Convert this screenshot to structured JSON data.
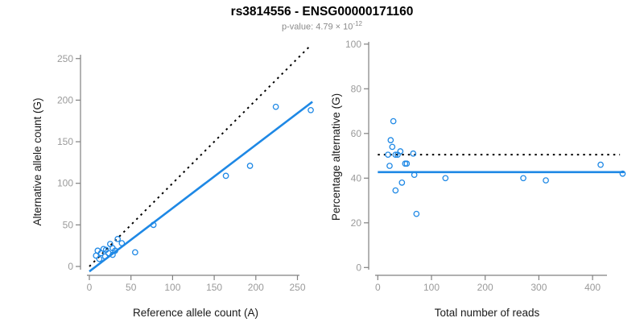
{
  "header": {
    "title": "rs3814556 - ENSG00000171160",
    "subtitle_prefix": "p-value: 4.79 × 10",
    "subtitle_exponent": "-12"
  },
  "colors": {
    "accent_blue": "#1E88E5",
    "line_black": "#000000",
    "axis_line": "#808080",
    "tick_label": "#9a9a9a",
    "axis_title": "#1a1a1a"
  },
  "chart_data": [
    {
      "name": "allele-count-scatter",
      "type": "scatter",
      "title": "",
      "xlabel": "Reference allele count (A)",
      "ylabel": "Alternative allele count (G)",
      "xticks": [
        0,
        50,
        100,
        150,
        200,
        250
      ],
      "yticks": [
        0,
        50,
        100,
        150,
        200,
        250
      ],
      "xlim": [
        0,
        268
      ],
      "ylim": [
        0,
        268
      ],
      "grid": false,
      "legend": false,
      "points": [
        [
          10,
          19
        ],
        [
          8,
          13
        ],
        [
          12,
          9
        ],
        [
          14,
          16
        ],
        [
          17,
          21
        ],
        [
          20,
          20
        ],
        [
          19,
          12
        ],
        [
          23,
          16
        ],
        [
          25,
          27
        ],
        [
          28,
          22
        ],
        [
          28,
          14
        ],
        [
          31,
          19
        ],
        [
          34,
          33
        ],
        [
          39,
          28
        ],
        [
          55,
          17
        ],
        [
          77,
          50
        ],
        [
          164,
          109
        ],
        [
          193,
          121
        ],
        [
          224,
          192
        ],
        [
          266,
          188
        ]
      ],
      "lines": [
        {
          "name": "identity-line",
          "style": "dotted",
          "color": "#000000",
          "from": [
            0,
            0
          ],
          "to": [
            266,
            266
          ]
        },
        {
          "name": "regression-line",
          "style": "solid",
          "color": "#1E88E5",
          "from": [
            0,
            -6
          ],
          "to": [
            268,
            198
          ]
        }
      ]
    },
    {
      "name": "percentage-scatter",
      "type": "scatter",
      "title": "",
      "xlabel": "Total number of reads",
      "ylabel": "Percentage alternative (G)",
      "xticks": [
        0,
        100,
        200,
        300,
        400
      ],
      "yticks": [
        0,
        20,
        40,
        60,
        80,
        100
      ],
      "xlim": [
        0,
        460
      ],
      "ylim": [
        0,
        100
      ],
      "grid": false,
      "legend": false,
      "points": [
        [
          29,
          65.5
        ],
        [
          24,
          57
        ],
        [
          27,
          54
        ],
        [
          42,
          52
        ],
        [
          19,
          50.5
        ],
        [
          33,
          50.5
        ],
        [
          37,
          50.5
        ],
        [
          66,
          51
        ],
        [
          22,
          45.5
        ],
        [
          51,
          46.5
        ],
        [
          54,
          46.5
        ],
        [
          415,
          46
        ],
        [
          68,
          41.5
        ],
        [
          456,
          42
        ],
        [
          126,
          40
        ],
        [
          271,
          40
        ],
        [
          313,
          39
        ],
        [
          45,
          38
        ],
        [
          33,
          34.5
        ],
        [
          72,
          24
        ]
      ],
      "lines": [
        {
          "name": "expected-percentage-line",
          "style": "dotted",
          "color": "#000000",
          "from": [
            0,
            50.5
          ],
          "to": [
            451,
            50.5
          ]
        },
        {
          "name": "mean-percentage-line",
          "style": "solid",
          "color": "#1E88E5",
          "from": [
            0,
            42.7
          ],
          "to": [
            459,
            42.7
          ]
        }
      ]
    }
  ]
}
